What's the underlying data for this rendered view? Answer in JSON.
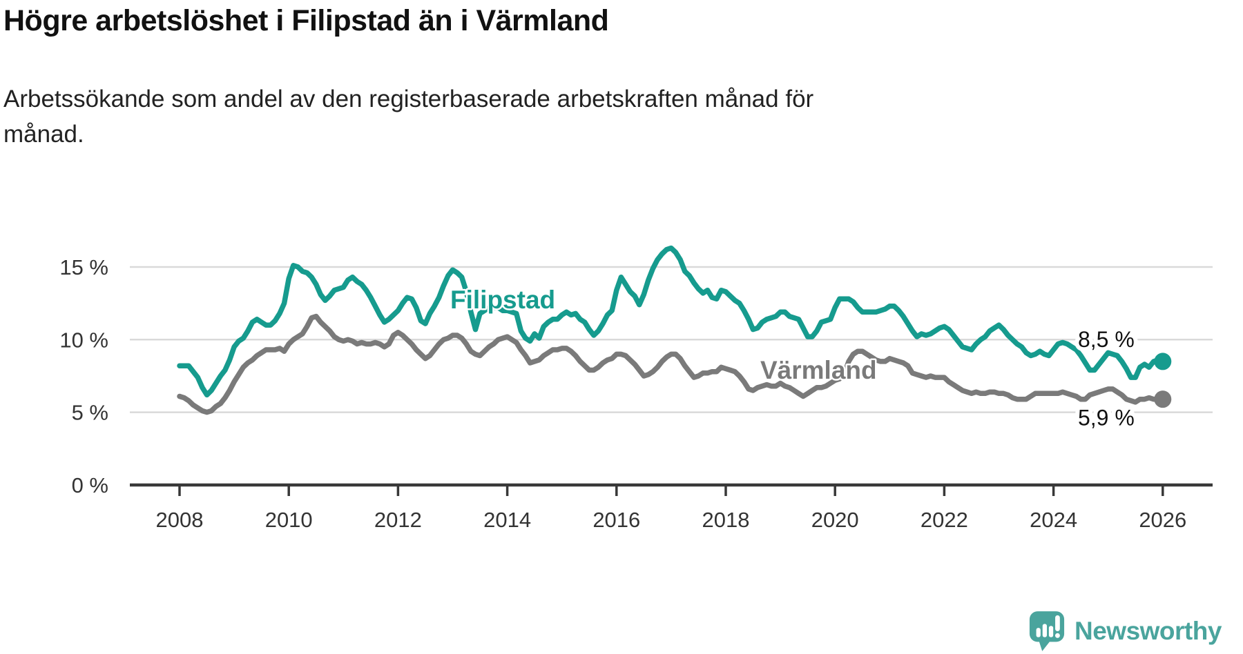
{
  "header": {
    "title": "Högre arbetslöshet i Filipstad än i Värmland",
    "subtitle_lines": [
      "Arbetssökande som andel av den registerbaserade arbetskraften månad för",
      "månad."
    ]
  },
  "chart_data": {
    "type": "line",
    "unit": "%",
    "start": "2008-01",
    "frequency": "monthly",
    "ylim": [
      0,
      17.5
    ],
    "grid": true,
    "legend_position": "inline-labels",
    "y_ticks": [
      {
        "value": 0,
        "label": "0 %"
      },
      {
        "value": 5,
        "label": "5 %"
      },
      {
        "value": 10,
        "label": "10 %"
      },
      {
        "value": 15,
        "label": "15 %"
      }
    ],
    "x_ticks": [
      {
        "value": 2008,
        "label": "2008"
      },
      {
        "value": 2010,
        "label": "2010"
      },
      {
        "value": 2012,
        "label": "2012"
      },
      {
        "value": 2014,
        "label": "2014"
      },
      {
        "value": 2016,
        "label": "2016"
      },
      {
        "value": 2018,
        "label": "2018"
      },
      {
        "value": 2020,
        "label": "2020"
      },
      {
        "value": 2022,
        "label": "2022"
      },
      {
        "value": 2024,
        "label": "2024"
      },
      {
        "value": 2026,
        "label": "2026"
      }
    ],
    "series": [
      {
        "name": "Filipstad",
        "color": "#169b8e",
        "end_label": "8,5 %",
        "values": [
          8.2,
          8.2,
          8.2,
          7.8,
          7.4,
          6.7,
          6.2,
          6.5,
          7.0,
          7.5,
          7.9,
          8.6,
          9.5,
          9.9,
          10.1,
          10.6,
          11.2,
          11.4,
          11.2,
          11.0,
          11.0,
          11.3,
          11.8,
          12.5,
          14.2,
          15.1,
          15.0,
          14.7,
          14.6,
          14.3,
          13.8,
          13.1,
          12.7,
          13.0,
          13.4,
          13.5,
          13.6,
          14.1,
          14.3,
          14.0,
          13.8,
          13.4,
          12.9,
          12.3,
          11.7,
          11.2,
          11.4,
          11.7,
          12.0,
          12.5,
          12.9,
          12.8,
          12.2,
          11.3,
          11.1,
          11.8,
          12.3,
          12.9,
          13.7,
          14.4,
          14.8,
          14.6,
          14.3,
          13.3,
          11.9,
          10.7,
          11.8,
          12.0,
          12.2,
          12.2,
          12.2,
          12.0,
          12.0,
          11.9,
          11.8,
          10.6,
          10.1,
          9.9,
          10.4,
          10.1,
          10.9,
          11.2,
          11.4,
          11.4,
          11.7,
          11.9,
          11.7,
          11.8,
          11.4,
          11.2,
          10.7,
          10.3,
          10.6,
          11.1,
          11.7,
          12.0,
          13.4,
          14.3,
          13.8,
          13.3,
          13.0,
          12.4,
          13.1,
          14.1,
          14.9,
          15.5,
          15.9,
          16.2,
          16.3,
          16.0,
          15.5,
          14.7,
          14.4,
          13.9,
          13.5,
          13.2,
          13.4,
          12.9,
          12.8,
          13.4,
          13.3,
          13.0,
          12.7,
          12.5,
          12.0,
          11.4,
          10.7,
          10.8,
          11.2,
          11.4,
          11.5,
          11.6,
          11.9,
          11.9,
          11.6,
          11.5,
          11.4,
          10.8,
          10.2,
          10.2,
          10.6,
          11.2,
          11.3,
          11.4,
          12.2,
          12.8,
          12.8,
          12.8,
          12.6,
          12.2,
          11.9,
          11.9,
          11.9,
          11.9,
          12.0,
          12.1,
          12.3,
          12.3,
          12.0,
          11.6,
          11.1,
          10.6,
          10.2,
          10.4,
          10.3,
          10.4,
          10.6,
          10.8,
          10.9,
          10.7,
          10.3,
          9.9,
          9.5,
          9.4,
          9.3,
          9.7,
          10.0,
          10.2,
          10.6,
          10.8,
          11.0,
          10.7,
          10.3,
          10.0,
          9.7,
          9.5,
          9.1,
          8.9,
          9.0,
          9.2,
          9.0,
          8.9,
          9.3,
          9.7,
          9.8,
          9.7,
          9.5,
          9.3,
          8.9,
          8.4,
          7.9,
          7.9,
          8.3,
          8.7,
          9.1,
          9.0,
          8.9,
          8.5,
          8.0,
          7.4,
          7.4,
          8.1,
          8.3,
          8.1,
          8.5,
          8.6,
          8.5
        ]
      },
      {
        "name": "Värmland",
        "color": "#7a7a7a",
        "end_label": "5,9 %",
        "values": [
          6.1,
          6.0,
          5.8,
          5.5,
          5.3,
          5.1,
          5.0,
          5.1,
          5.4,
          5.6,
          6.0,
          6.5,
          7.1,
          7.6,
          8.1,
          8.4,
          8.6,
          8.9,
          9.1,
          9.3,
          9.3,
          9.3,
          9.4,
          9.2,
          9.7,
          10.0,
          10.2,
          10.4,
          10.9,
          11.5,
          11.6,
          11.2,
          10.9,
          10.6,
          10.2,
          10.0,
          9.9,
          10.0,
          9.9,
          9.7,
          9.8,
          9.7,
          9.7,
          9.8,
          9.7,
          9.5,
          9.7,
          10.3,
          10.5,
          10.3,
          10.0,
          9.7,
          9.3,
          9.0,
          8.7,
          8.9,
          9.3,
          9.7,
          10.0,
          10.1,
          10.3,
          10.3,
          10.1,
          9.7,
          9.2,
          9.0,
          8.9,
          9.2,
          9.5,
          9.7,
          10.0,
          10.1,
          10.2,
          10.0,
          9.8,
          9.3,
          8.9,
          8.4,
          8.5,
          8.6,
          8.9,
          9.1,
          9.3,
          9.3,
          9.4,
          9.4,
          9.2,
          8.9,
          8.5,
          8.2,
          7.9,
          7.9,
          8.1,
          8.4,
          8.6,
          8.7,
          9.0,
          9.0,
          8.9,
          8.6,
          8.3,
          7.9,
          7.5,
          7.6,
          7.8,
          8.1,
          8.5,
          8.8,
          9.0,
          9.0,
          8.7,
          8.2,
          7.8,
          7.4,
          7.5,
          7.7,
          7.7,
          7.8,
          7.8,
          8.1,
          8.0,
          7.9,
          7.8,
          7.5,
          7.1,
          6.6,
          6.5,
          6.7,
          6.8,
          6.9,
          6.8,
          6.8,
          7.0,
          6.8,
          6.7,
          6.5,
          6.3,
          6.1,
          6.3,
          6.5,
          6.7,
          6.7,
          6.8,
          7.0,
          7.2,
          7.3,
          7.6,
          8.5,
          9.0,
          9.2,
          9.2,
          9.0,
          8.8,
          8.6,
          8.5,
          8.5,
          8.7,
          8.6,
          8.5,
          8.4,
          8.2,
          7.7,
          7.6,
          7.5,
          7.4,
          7.5,
          7.4,
          7.4,
          7.4,
          7.1,
          6.9,
          6.7,
          6.5,
          6.4,
          6.3,
          6.4,
          6.3,
          6.3,
          6.4,
          6.4,
          6.3,
          6.3,
          6.2,
          6.0,
          5.9,
          5.9,
          5.9,
          6.1,
          6.3,
          6.3,
          6.3,
          6.3,
          6.3,
          6.3,
          6.4,
          6.3,
          6.2,
          6.1,
          5.9,
          5.9,
          6.2,
          6.3,
          6.4,
          6.5,
          6.6,
          6.6,
          6.4,
          6.2,
          5.9,
          5.8,
          5.7,
          5.9,
          5.9,
          6.0,
          5.9,
          5.9,
          5.9
        ]
      }
    ]
  },
  "footer": {
    "brand": "Newsworthy"
  },
  "colors": {
    "filipstad": "#169b8e",
    "varmland": "#7a7a7a",
    "gridline": "#d9d9d9",
    "axis": "#383838",
    "axis_text": "#333333",
    "value_label_text": "#111111",
    "logo_teal": "#4aa49d"
  }
}
